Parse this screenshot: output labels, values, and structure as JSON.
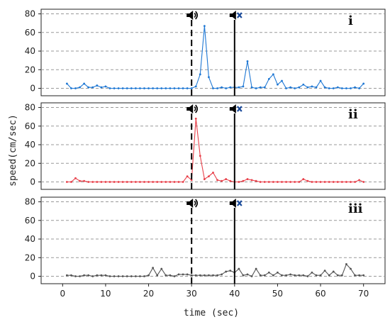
{
  "chart_data": {
    "type": "line",
    "xlabel": "time (sec)",
    "ylabel": "speed(cm/sec)",
    "xlim": [
      -5,
      75
    ],
    "ylim": [
      -8,
      85
    ],
    "xticks": [
      0,
      10,
      20,
      30,
      40,
      50,
      60,
      70
    ],
    "yticks": [
      0,
      20,
      40,
      60,
      80
    ],
    "grid": "horizontal dashed",
    "events": [
      {
        "x": 30,
        "style": "dashed",
        "icon": "speaker-on-icon"
      },
      {
        "x": 40,
        "style": "solid",
        "icon": "speaker-mute-icon"
      }
    ],
    "panels": [
      {
        "label": "i",
        "color": "#1f78d4",
        "x": [
          1,
          2,
          3,
          4,
          5,
          6,
          7,
          8,
          9,
          10,
          11,
          12,
          13,
          14,
          15,
          16,
          17,
          18,
          19,
          20,
          21,
          22,
          23,
          24,
          25,
          26,
          27,
          28,
          29,
          30,
          31,
          32,
          33,
          34,
          35,
          36,
          37,
          38,
          39,
          40,
          41,
          42,
          43,
          44,
          45,
          46,
          47,
          48,
          49,
          50,
          51,
          52,
          53,
          54,
          55,
          56,
          57,
          58,
          59,
          60,
          61,
          62,
          63,
          64,
          65,
          66,
          67,
          68,
          69,
          70
        ],
        "values": [
          5,
          0,
          0,
          1,
          5,
          1,
          1,
          3,
          1,
          2,
          0,
          0,
          0,
          0,
          0,
          0,
          0,
          0,
          0,
          0,
          0,
          0,
          0,
          0,
          0,
          0,
          0,
          0,
          0,
          0,
          2,
          15,
          67,
          12,
          0,
          0,
          1,
          0,
          1,
          1,
          1,
          2,
          29,
          1,
          0,
          1,
          1,
          10,
          15,
          4,
          8,
          0,
          1,
          0,
          1,
          4,
          1,
          2,
          1,
          8,
          1,
          0,
          0,
          1,
          0,
          0,
          0,
          1,
          0,
          5
        ]
      },
      {
        "label": "ii",
        "color": "#e8404a",
        "x": [
          1,
          2,
          3,
          4,
          5,
          6,
          7,
          8,
          9,
          10,
          11,
          12,
          13,
          14,
          15,
          16,
          17,
          18,
          19,
          20,
          21,
          22,
          23,
          24,
          25,
          26,
          27,
          28,
          29,
          30,
          31,
          32,
          33,
          34,
          35,
          36,
          37,
          38,
          39,
          40,
          41,
          42,
          43,
          44,
          45,
          46,
          47,
          48,
          49,
          50,
          51,
          52,
          53,
          54,
          55,
          56,
          57,
          58,
          59,
          60,
          61,
          62,
          63,
          64,
          65,
          66,
          67,
          68,
          69,
          70
        ],
        "values": [
          0,
          0,
          4,
          1,
          1,
          0,
          0,
          0,
          0,
          0,
          0,
          0,
          0,
          0,
          0,
          0,
          0,
          0,
          0,
          0,
          0,
          0,
          0,
          0,
          0,
          0,
          0,
          0,
          6,
          2,
          68,
          28,
          3,
          6,
          10,
          2,
          1,
          3,
          1,
          0,
          0,
          1,
          3,
          2,
          1,
          0,
          0,
          0,
          0,
          0,
          0,
          0,
          0,
          0,
          0,
          3,
          1,
          0,
          0,
          0,
          0,
          0,
          0,
          0,
          0,
          0,
          0,
          0,
          2,
          0
        ]
      },
      {
        "label": "iii",
        "color": "#555555",
        "x": [
          1,
          2,
          3,
          4,
          5,
          6,
          7,
          8,
          9,
          10,
          11,
          12,
          13,
          14,
          15,
          16,
          17,
          18,
          19,
          20,
          21,
          22,
          23,
          24,
          25,
          26,
          27,
          28,
          29,
          30,
          31,
          32,
          33,
          34,
          35,
          36,
          37,
          38,
          39,
          40,
          41,
          42,
          43,
          44,
          45,
          46,
          47,
          48,
          49,
          50,
          51,
          52,
          53,
          54,
          55,
          56,
          57,
          58,
          59,
          60,
          61,
          62,
          63,
          64,
          65,
          66,
          67,
          68,
          69,
          70
        ],
        "values": [
          1,
          1,
          0,
          0,
          1,
          1,
          0,
          1,
          1,
          1,
          0,
          0,
          0,
          0,
          0,
          0,
          0,
          0,
          0,
          1,
          9,
          1,
          8,
          1,
          1,
          0,
          2,
          2,
          2,
          1,
          1,
          1,
          1,
          1,
          1,
          1,
          2,
          5,
          6,
          4,
          8,
          1,
          2,
          0,
          8,
          1,
          1,
          4,
          1,
          4,
          1,
          1,
          2,
          1,
          1,
          1,
          0,
          4,
          1,
          1,
          6,
          1,
          5,
          1,
          1,
          13,
          8,
          1,
          1,
          1
        ]
      }
    ]
  }
}
